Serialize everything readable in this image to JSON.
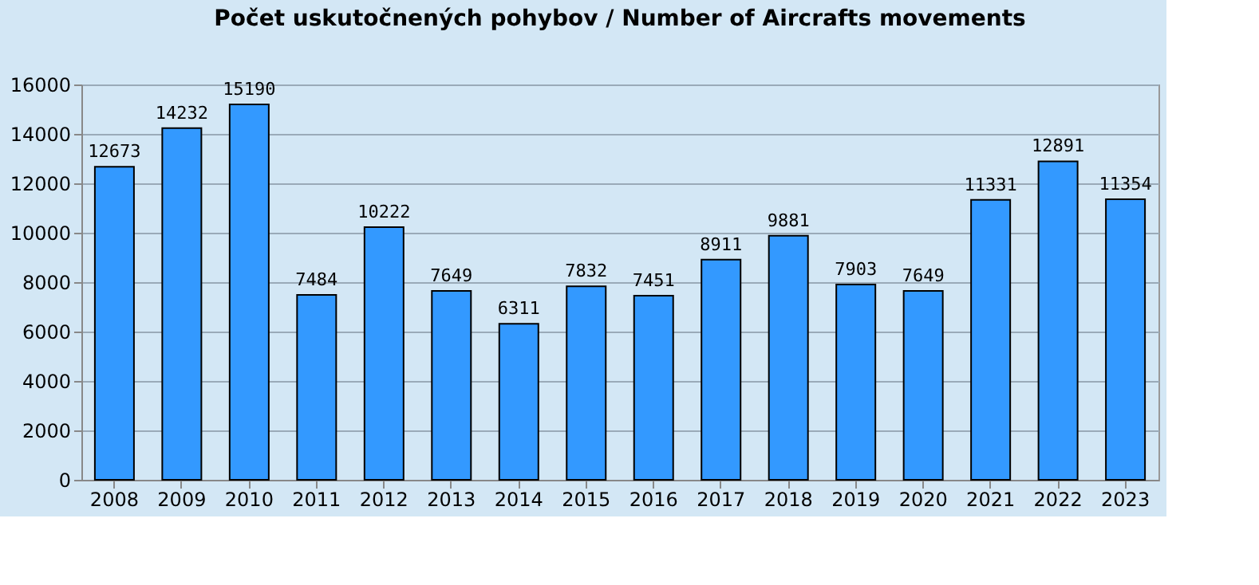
{
  "chart_data": {
    "type": "bar",
    "title": "Počet uskutočnených pohybov / Number of Aircrafts movements",
    "categories": [
      "2008",
      "2009",
      "2010",
      "2011",
      "2012",
      "2013",
      "2014",
      "2015",
      "2016",
      "2017",
      "2018",
      "2019",
      "2020",
      "2021",
      "2022",
      "2023"
    ],
    "values": [
      12673,
      14232,
      15190,
      7484,
      10222,
      7649,
      6311,
      7832,
      7451,
      8911,
      9881,
      7903,
      7649,
      11331,
      12891,
      11354
    ],
    "color": "#3399ff",
    "ylim": [
      0,
      16000
    ],
    "yticks": [
      0,
      2000,
      4000,
      6000,
      8000,
      10000,
      12000,
      14000,
      16000
    ],
    "grid": "y",
    "data_labels": true
  }
}
